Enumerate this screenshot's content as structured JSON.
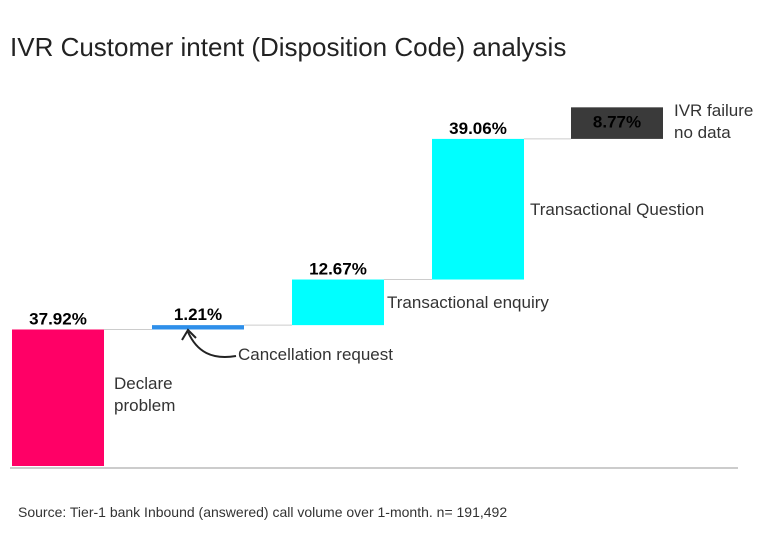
{
  "chart_data": {
    "type": "waterfall",
    "title": "IVR Customer intent (Disposition Code) analysis",
    "categories": [
      "Declare problem",
      "Cancellation request",
      "Transactional enquiry",
      "Transactional Question",
      "IVR failure no data"
    ],
    "category_label_lines": [
      [
        "Declare",
        "problem"
      ],
      [
        "Cancellation request"
      ],
      [
        "Transactional enquiry"
      ],
      [
        "Transactional Question"
      ],
      [
        "IVR failure",
        "no data"
      ]
    ],
    "values": [
      37.92,
      1.21,
      12.67,
      39.06,
      8.77
    ],
    "value_labels": [
      "37.92%",
      "1.21%",
      "12.67%",
      "39.06%",
      "8.77%"
    ],
    "colors": [
      "#ff0066",
      "#2e8fea",
      "#00ffff",
      "#00ffff",
      "#3a3a3a"
    ],
    "ylim": [
      0,
      100
    ],
    "source": "Source: Tier-1 bank Inbound (answered) call volume over 1-month. n= 191,492"
  }
}
